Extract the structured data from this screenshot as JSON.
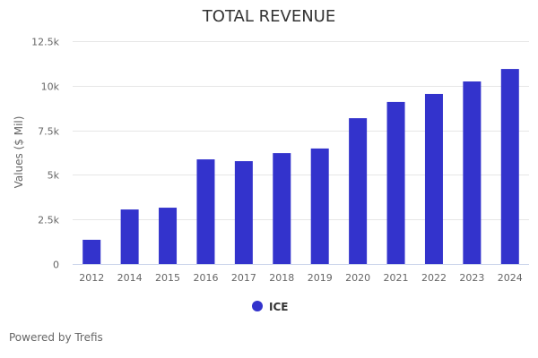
{
  "chart_data": {
    "type": "bar",
    "title": "TOTAL REVENUE",
    "xlabel": "",
    "ylabel": "Values ($ Mil)",
    "categories": [
      "2012",
      "2014",
      "2015",
      "2016",
      "2017",
      "2018",
      "2019",
      "2020",
      "2021",
      "2022",
      "2023",
      "2024"
    ],
    "series": [
      {
        "name": "ICE",
        "color": "#3333cc",
        "values": [
          1360,
          3060,
          3160,
          5870,
          5770,
          6220,
          6480,
          8180,
          9090,
          9540,
          10240,
          10940
        ]
      }
    ],
    "ylim": [
      0,
      12500
    ],
    "yticks": [
      0,
      2500,
      5000,
      7500,
      10000,
      12500
    ],
    "ytick_labels": [
      "0",
      "2.5k",
      "5k",
      "7.5k",
      "10k",
      "12.5k"
    ],
    "grid": true,
    "legend_position": "bottom-center"
  },
  "credit": "Powered by Trefis",
  "colors": {
    "gridline": "#e6e6e6",
    "axis": "#ccd6eb"
  }
}
